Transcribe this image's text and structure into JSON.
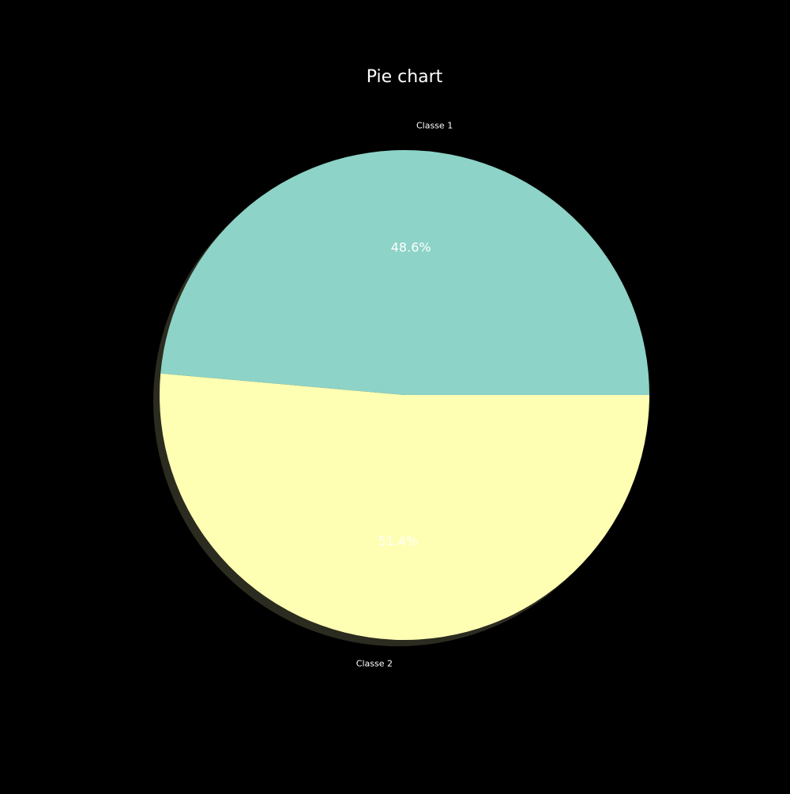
{
  "chart_data": {
    "type": "pie",
    "title": "Pie chart",
    "labels": [
      "Classe 1",
      "Classe 2"
    ],
    "values": [
      48.6,
      51.4
    ],
    "pct_labels": [
      "48.6%",
      "51.4%"
    ],
    "colors": [
      "#8dd3c7",
      "#ffffb3"
    ],
    "start_angle_deg": 0,
    "direction": "counterclockwise",
    "shadow": true
  },
  "style": {
    "background": "#000000",
    "text_color": "#ffffff",
    "shadow_color": "#2b2b20"
  }
}
